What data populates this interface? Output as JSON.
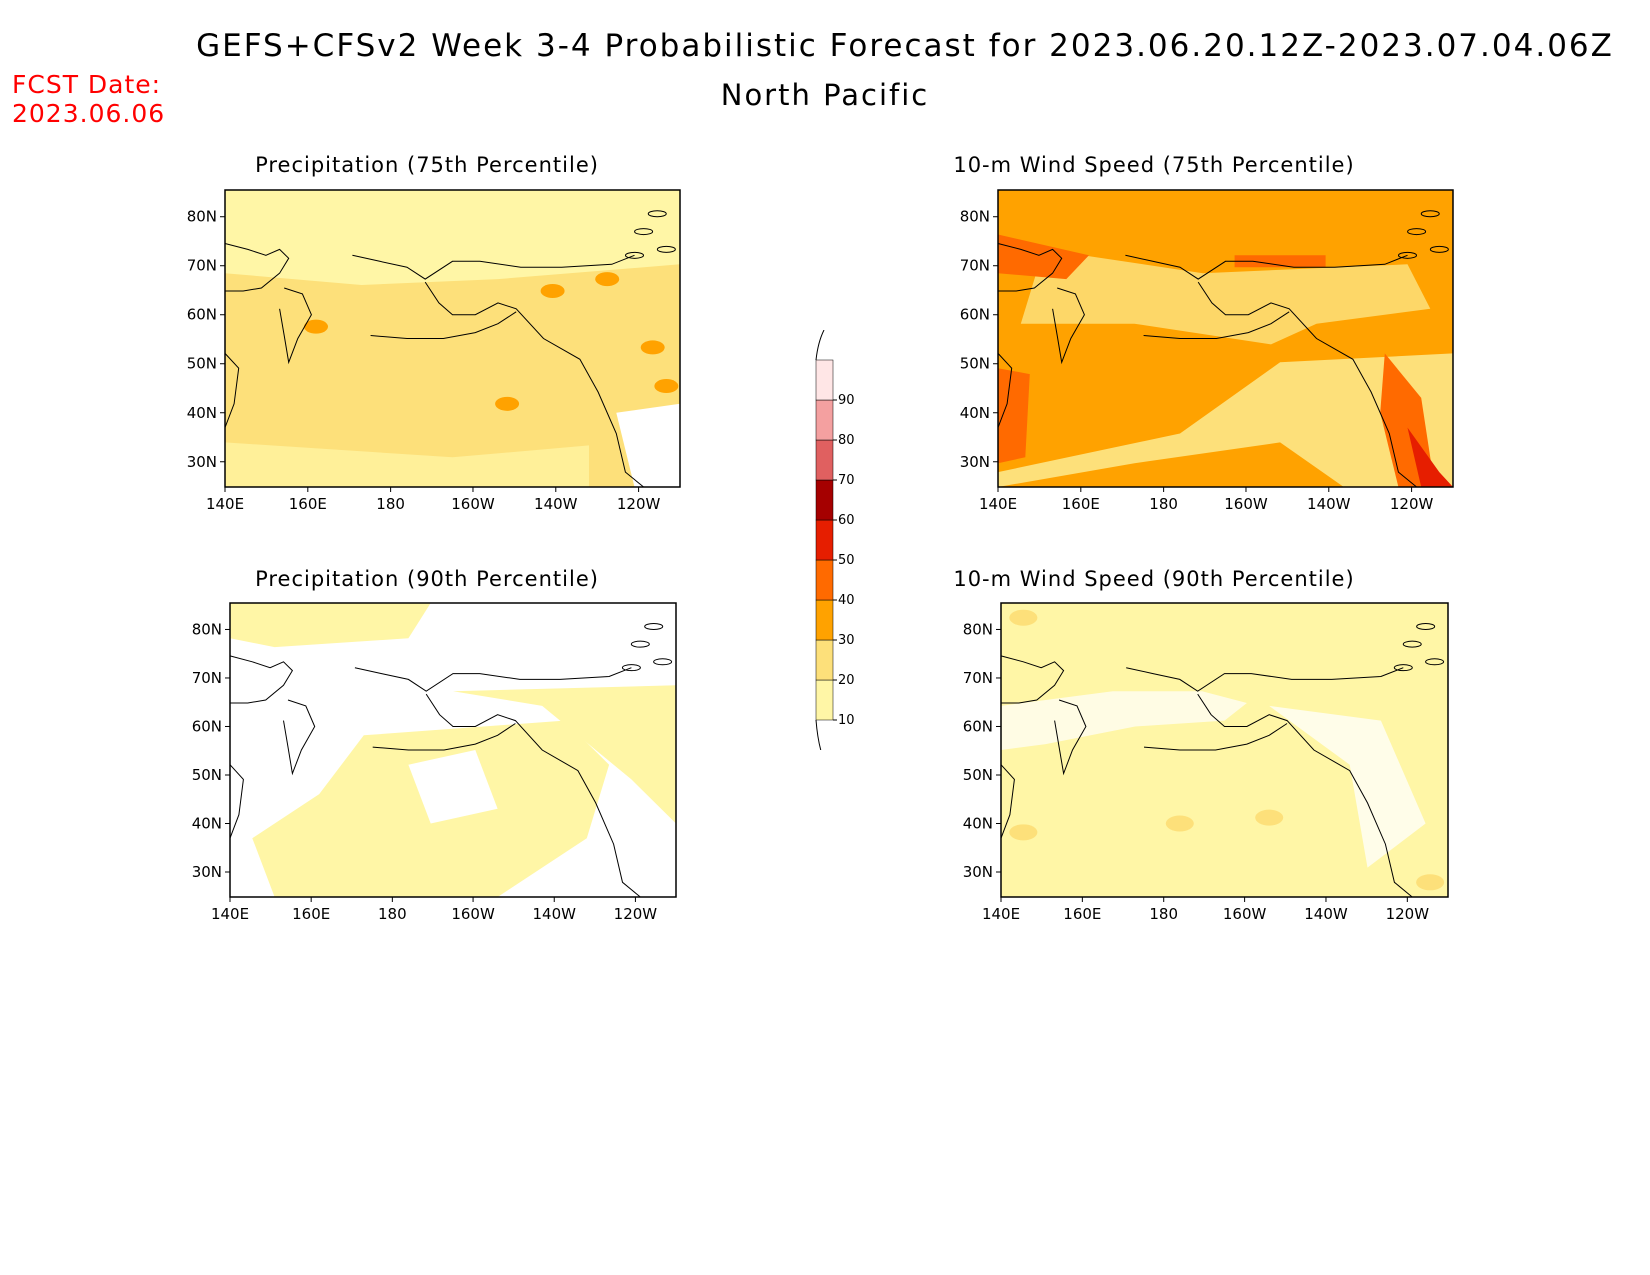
{
  "header": {
    "title": "GEFS+CFSv2 Week 3-4 Probabilistic Forecast for 2023.06.20.12Z-2023.07.04.06Z",
    "region": "North Pacific",
    "fcst_label": "FCST Date:",
    "fcst_date": "2023.06.06"
  },
  "axes": {
    "lat_labels": [
      "80N",
      "70N",
      "60N",
      "50N",
      "40N",
      "30N"
    ],
    "lon_labels": [
      "140E",
      "160E",
      "180",
      "160W",
      "140W",
      "120W"
    ]
  },
  "panels": [
    {
      "id": "precip75",
      "title": "Precipitation (75th Percentile)",
      "level": 1
    },
    {
      "id": "wind75",
      "title": "10-m Wind Speed (75th Percentile)",
      "level": 2
    },
    {
      "id": "precip90",
      "title": "Precipitation (90th Percentile)",
      "level": 0
    },
    {
      "id": "wind90",
      "title": "10-m Wind Speed (90th Percentile)",
      "level": 0
    }
  ],
  "colorbar": {
    "labels": [
      "10",
      "20",
      "30",
      "40",
      "50",
      "60",
      "70",
      "80",
      "90"
    ],
    "colors": [
      "#fff6a6",
      "#fde07a",
      "#ffa200",
      "#ff6a00",
      "#e61e00",
      "#a50000",
      "#e06060",
      "#f4a0a0",
      "#ffe6e6"
    ]
  },
  "colors": {
    "c10": "#fff6a6",
    "c20": "#fde07a",
    "c30": "#ffa200",
    "c40": "#ff6a00",
    "c50": "#e61e00"
  }
}
